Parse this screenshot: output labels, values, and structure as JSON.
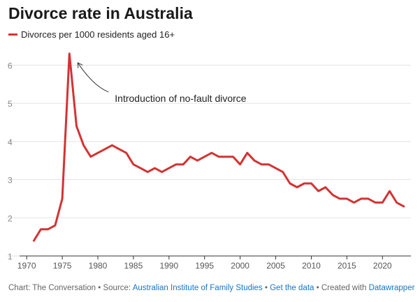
{
  "title": "Divorce rate in Australia",
  "colors": {
    "series": "#d33333",
    "grid": "#e3e3e3",
    "axis": "#333333",
    "tick_text": "#888888",
    "x_tick_text": "#555555"
  },
  "chart_data": {
    "type": "line",
    "title": "Divorce rate in Australia",
    "xlabel": "",
    "ylabel": "",
    "xlim": [
      1969,
      2024
    ],
    "ylim": [
      1,
      6.5
    ],
    "x_ticks": [
      1970,
      1975,
      1980,
      1985,
      1990,
      1995,
      2000,
      2005,
      2010,
      2015,
      2020
    ],
    "x_tick_labels": [
      "1970",
      "1975",
      "1980",
      "1985",
      "1990",
      "1995",
      "2000",
      "2005",
      "2010",
      "2015",
      "2020"
    ],
    "y_ticks": [
      1,
      2,
      3,
      4,
      5,
      6
    ],
    "y_tick_labels": [
      "1",
      "2",
      "3",
      "4",
      "5",
      "6"
    ],
    "grid": true,
    "legend": "top-left",
    "series": [
      {
        "name": "Divorces per 1000 residents aged 16+",
        "x": [
          1971,
          1972,
          1973,
          1974,
          1975,
          1976,
          1977,
          1978,
          1979,
          1980,
          1981,
          1982,
          1983,
          1984,
          1985,
          1986,
          1987,
          1988,
          1989,
          1990,
          1991,
          1992,
          1993,
          1994,
          1995,
          1996,
          1997,
          1998,
          1999,
          2000,
          2001,
          2002,
          2003,
          2004,
          2005,
          2006,
          2007,
          2008,
          2009,
          2010,
          2011,
          2012,
          2013,
          2014,
          2015,
          2016,
          2017,
          2018,
          2019,
          2020,
          2021,
          2022,
          2023
        ],
        "values": [
          1.4,
          1.7,
          1.7,
          1.8,
          2.5,
          6.3,
          4.4,
          3.9,
          3.6,
          3.7,
          3.8,
          3.9,
          3.8,
          3.7,
          3.4,
          3.3,
          3.2,
          3.3,
          3.2,
          3.3,
          3.4,
          3.4,
          3.6,
          3.5,
          3.6,
          3.7,
          3.6,
          3.6,
          3.6,
          3.4,
          3.7,
          3.5,
          3.4,
          3.4,
          3.3,
          3.2,
          2.9,
          2.8,
          2.9,
          2.9,
          2.7,
          2.8,
          2.6,
          2.5,
          2.5,
          2.4,
          2.5,
          2.5,
          2.4,
          2.4,
          2.7,
          2.4,
          2.3
        ]
      }
    ],
    "annotations": [
      {
        "text": "Introduction of no-fault divorce",
        "x": 1976,
        "y": 6.3
      }
    ]
  },
  "footer": {
    "prefix": "Chart: The Conversation • Source: ",
    "source_link": "Australian Institute of Family Studies",
    "sep1": " • ",
    "data_link": "Get the data",
    "sep2": " • Created with ",
    "dw_link": "Datawrapper"
  }
}
